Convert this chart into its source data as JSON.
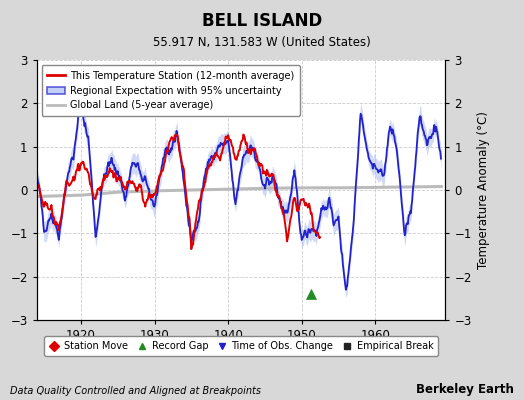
{
  "title": "BELL ISLAND",
  "subtitle": "55.917 N, 131.583 W (United States)",
  "ylabel": "Temperature Anomaly (°C)",
  "footnote_left": "Data Quality Controlled and Aligned at Breakpoints",
  "footnote_right": "Berkeley Earth",
  "xlim": [
    1914.0,
    1969.5
  ],
  "ylim": [
    -3,
    3
  ],
  "yticks": [
    -3,
    -2,
    -1,
    0,
    1,
    2,
    3
  ],
  "xticks": [
    1920,
    1930,
    1940,
    1950,
    1960
  ],
  "bg_color": "#d8d8d8",
  "plot_bg_color": "#ffffff",
  "red_line_color": "#dd0000",
  "blue_line_color": "#2222cc",
  "blue_fill_color": "#aabbee",
  "gray_line_color": "#bbbbbb",
  "record_gap_x": 1951.3,
  "record_gap_y": -2.4,
  "seed": 42
}
